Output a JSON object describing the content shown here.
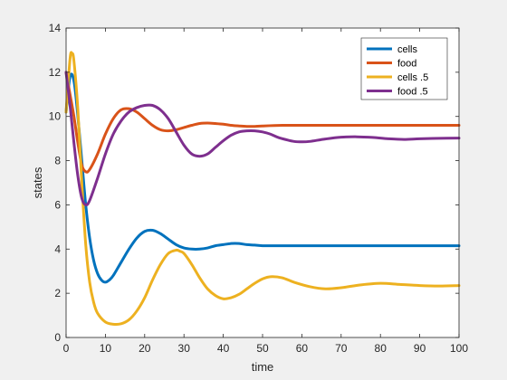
{
  "chart_data": {
    "type": "line",
    "title": "",
    "xlabel": "time",
    "ylabel": "states",
    "xlim": [
      0,
      100
    ],
    "ylim": [
      0,
      14
    ],
    "xticks": [
      0,
      10,
      20,
      30,
      40,
      50,
      60,
      70,
      80,
      90,
      100
    ],
    "yticks": [
      0,
      2,
      4,
      6,
      8,
      10,
      12,
      14
    ],
    "grid": false,
    "legend_position": "top-right",
    "series": [
      {
        "name": "cells",
        "color": "#0072bd",
        "x": [
          0,
          1,
          2,
          3,
          4,
          5,
          6,
          7,
          8,
          9,
          10,
          11,
          12,
          14,
          16,
          18,
          20,
          22,
          24,
          26,
          28,
          30,
          32,
          34,
          36,
          38,
          40,
          42,
          44,
          46,
          48,
          50,
          55,
          60,
          70,
          80,
          90,
          100
        ],
        "y": [
          10.2,
          11.8,
          11.6,
          10.0,
          8.0,
          6.0,
          4.5,
          3.5,
          2.9,
          2.6,
          2.5,
          2.6,
          2.8,
          3.4,
          4.0,
          4.5,
          4.8,
          4.85,
          4.7,
          4.45,
          4.2,
          4.05,
          4.0,
          4.0,
          4.05,
          4.15,
          4.2,
          4.25,
          4.25,
          4.2,
          4.18,
          4.15,
          4.15,
          4.15,
          4.15,
          4.15,
          4.15,
          4.15
        ]
      },
      {
        "name": "food",
        "color": "#d95319",
        "x": [
          0,
          1,
          2,
          3,
          4,
          5,
          6,
          8,
          10,
          12,
          14,
          16,
          18,
          20,
          22,
          24,
          26,
          28,
          30,
          32,
          34,
          36,
          38,
          40,
          42,
          44,
          46,
          48,
          50,
          55,
          60,
          70,
          80,
          90,
          100
        ],
        "y": [
          12.0,
          11.0,
          10.0,
          8.8,
          7.8,
          7.5,
          7.6,
          8.3,
          9.2,
          9.9,
          10.3,
          10.35,
          10.2,
          9.9,
          9.6,
          9.4,
          9.35,
          9.4,
          9.5,
          9.6,
          9.68,
          9.7,
          9.68,
          9.65,
          9.6,
          9.57,
          9.55,
          9.55,
          9.57,
          9.6,
          9.6,
          9.6,
          9.6,
          9.6,
          9.6
        ]
      },
      {
        "name": "cells .5",
        "color": "#edb120",
        "x": [
          0,
          1,
          1.5,
          2,
          3,
          4,
          5,
          6,
          7,
          8,
          10,
          12,
          14,
          16,
          18,
          20,
          22,
          24,
          26,
          28,
          29,
          30,
          32,
          34,
          36,
          38,
          40,
          42,
          44,
          46,
          48,
          50,
          52,
          55,
          58,
          62,
          66,
          70,
          75,
          80,
          85,
          90,
          95,
          100
        ],
        "y": [
          10.2,
          12.6,
          12.85,
          12.5,
          10.3,
          7.0,
          4.2,
          2.5,
          1.6,
          1.1,
          0.7,
          0.6,
          0.62,
          0.8,
          1.2,
          1.8,
          2.6,
          3.3,
          3.8,
          3.95,
          3.9,
          3.8,
          3.3,
          2.7,
          2.2,
          1.9,
          1.75,
          1.8,
          1.95,
          2.2,
          2.45,
          2.65,
          2.75,
          2.7,
          2.5,
          2.3,
          2.2,
          2.25,
          2.38,
          2.45,
          2.4,
          2.35,
          2.33,
          2.35
        ]
      },
      {
        "name": "food .5",
        "color": "#7e2f8e",
        "x": [
          0,
          1,
          2,
          3,
          4,
          5,
          6,
          8,
          10,
          12,
          14,
          16,
          18,
          20,
          22,
          24,
          26,
          28,
          30,
          32,
          34,
          36,
          38,
          40,
          42,
          44,
          46,
          48,
          50,
          52,
          54,
          56,
          58,
          60,
          62,
          66,
          70,
          74,
          78,
          82,
          86,
          90,
          95,
          100
        ],
        "y": [
          12.0,
          10.5,
          8.8,
          7.3,
          6.3,
          6.0,
          6.2,
          7.2,
          8.3,
          9.2,
          9.8,
          10.2,
          10.4,
          10.5,
          10.5,
          10.3,
          9.9,
          9.3,
          8.7,
          8.3,
          8.2,
          8.3,
          8.6,
          8.9,
          9.15,
          9.3,
          9.35,
          9.35,
          9.3,
          9.2,
          9.05,
          8.95,
          8.87,
          8.85,
          8.87,
          8.98,
          9.06,
          9.08,
          9.05,
          8.99,
          8.96,
          8.99,
          9.01,
          9.02
        ]
      }
    ]
  }
}
